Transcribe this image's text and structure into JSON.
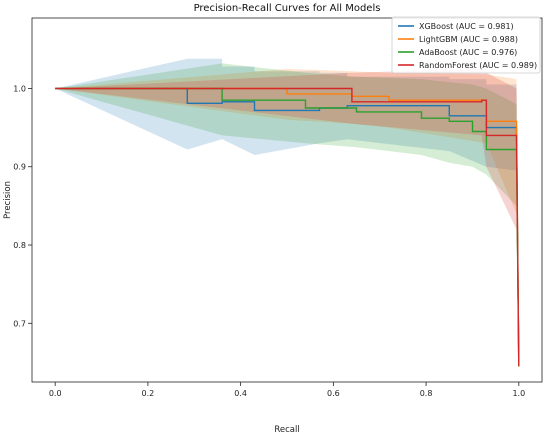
{
  "chart_data": {
    "type": "line",
    "title": "Precision-Recall Curves for All Models",
    "xlabel": "Recall",
    "ylabel": "Precision",
    "xlim": [
      -0.05,
      1.05
    ],
    "ylim": [
      0.625,
      1.09
    ],
    "xticks": [
      0.0,
      0.2,
      0.4,
      0.6,
      0.8,
      1.0
    ],
    "xtick_labels": [
      "0.0",
      "0.2",
      "0.4",
      "0.6",
      "0.8",
      "1.0"
    ],
    "yticks": [
      0.7,
      0.8,
      0.9,
      1.0
    ],
    "ytick_labels": [
      "0.7",
      "0.8",
      "0.9",
      "1.0"
    ],
    "grid": false,
    "legend_position": "top-right",
    "series": [
      {
        "name": "XGBoost (AUC = 0.981)",
        "color": "#1f77b4",
        "x": [
          0.0,
          0.285,
          0.285,
          0.36,
          0.36,
          0.43,
          0.43,
          0.57,
          0.57,
          0.63,
          0.63,
          0.85,
          0.85,
          0.93,
          0.93,
          0.995,
          1.0
        ],
        "y": [
          1.0,
          1.0,
          0.981,
          0.981,
          0.983,
          0.983,
          0.972,
          0.972,
          0.975,
          0.975,
          0.978,
          0.978,
          0.965,
          0.965,
          0.95,
          0.95,
          0.645
        ],
        "band_upper": [
          1.0,
          1.038,
          1.038,
          1.038,
          1.028,
          1.028,
          1.022,
          1.022,
          1.02,
          1.02,
          1.015,
          1.015,
          1.012,
          1.012,
          1.005,
          1.005,
          0.65
        ],
        "band_lower": [
          1.0,
          0.922,
          0.922,
          0.935,
          0.935,
          0.915,
          0.915,
          0.93,
          0.93,
          0.935,
          0.935,
          0.92,
          0.92,
          0.9,
          0.9,
          0.895,
          0.64
        ]
      },
      {
        "name": "LightGBM (AUC = 0.988)",
        "color": "#ff7f0e",
        "x": [
          0.0,
          0.5,
          0.5,
          0.64,
          0.64,
          0.72,
          0.72,
          0.93,
          0.93,
          0.995,
          1.0
        ],
        "y": [
          1.0,
          1.0,
          0.993,
          0.993,
          0.99,
          0.99,
          0.985,
          0.985,
          0.958,
          0.958,
          0.645
        ],
        "band_upper": [
          1.0,
          1.025,
          1.025,
          1.022,
          1.022,
          1.02,
          1.02,
          1.018,
          1.018,
          1.012,
          0.65
        ],
        "band_lower": [
          1.0,
          0.96,
          0.96,
          0.955,
          0.955,
          0.95,
          0.95,
          0.93,
          0.93,
          0.84,
          0.64
        ]
      },
      {
        "name": "AdaBoost (AUC = 0.976)",
        "color": "#2ca02c",
        "x": [
          0.0,
          0.36,
          0.36,
          0.54,
          0.54,
          0.65,
          0.65,
          0.79,
          0.79,
          0.85,
          0.85,
          0.9,
          0.9,
          0.93,
          0.93,
          0.995,
          1.0
        ],
        "y": [
          1.0,
          1.0,
          0.985,
          0.985,
          0.975,
          0.975,
          0.97,
          0.97,
          0.962,
          0.962,
          0.958,
          0.958,
          0.945,
          0.945,
          0.922,
          0.922,
          0.645
        ],
        "band_upper": [
          1.0,
          1.032,
          1.032,
          1.02,
          1.02,
          1.015,
          1.015,
          1.012,
          1.012,
          1.008,
          1.008,
          1.005,
          1.005,
          1.0,
          1.0,
          0.98,
          0.65
        ],
        "band_lower": [
          1.0,
          0.94,
          0.94,
          0.93,
          0.93,
          0.925,
          0.925,
          0.915,
          0.915,
          0.905,
          0.905,
          0.9,
          0.9,
          0.89,
          0.89,
          0.85,
          0.64
        ]
      },
      {
        "name": "RandomForest (AUC = 0.989)",
        "color": "#d62728",
        "x": [
          0.0,
          0.64,
          0.64,
          0.92,
          0.92,
          0.93,
          0.93,
          0.995,
          1.0
        ],
        "y": [
          1.0,
          1.0,
          0.983,
          0.983,
          0.985,
          0.985,
          0.94,
          0.94,
          0.645
        ],
        "band_upper": [
          1.0,
          1.02,
          1.02,
          1.025,
          1.025,
          1.02,
          1.02,
          1.0,
          0.65
        ],
        "band_lower": [
          1.0,
          0.955,
          0.955,
          0.94,
          0.94,
          0.9,
          0.9,
          0.82,
          0.64
        ]
      }
    ]
  }
}
